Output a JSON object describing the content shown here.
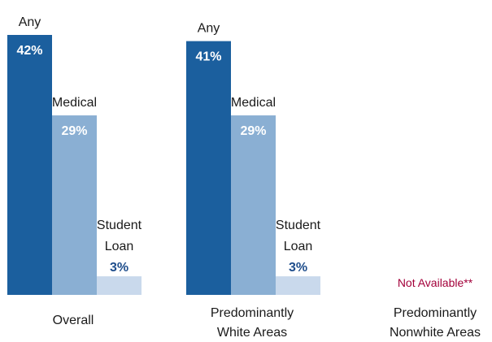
{
  "chart_data": {
    "type": "bar",
    "groups": [
      "Overall",
      "Predominantly White Areas",
      "Predominantly Nonwhite Areas"
    ],
    "group_label_lines": [
      [
        "Overall"
      ],
      [
        "Predominantly",
        "White Areas"
      ],
      [
        "Predominantly",
        "Nonwhite Areas"
      ]
    ],
    "series": [
      {
        "name": "Any",
        "values": [
          42,
          41,
          null
        ],
        "labels": [
          "42%",
          "41%",
          ""
        ],
        "color": "#1b5f9e",
        "label_lines": [
          "Any"
        ],
        "value_inside": true
      },
      {
        "name": "Medical",
        "values": [
          29,
          29,
          null
        ],
        "labels": [
          "29%",
          "29%",
          ""
        ],
        "color": "#8aafd3",
        "label_lines": [
          "Medical"
        ],
        "value_inside": true
      },
      {
        "name": "Student Loan",
        "values": [
          3,
          3,
          null
        ],
        "labels": [
          "3%",
          "3%",
          ""
        ],
        "color": "#c9d9ec",
        "label_lines": [
          "Student",
          "Loan"
        ],
        "value_inside": false
      }
    ],
    "annotations": [
      {
        "group": "Predominantly Nonwhite Areas",
        "text": "Not Available**",
        "color": "#a3003a"
      }
    ],
    "ylim": [
      0,
      42
    ],
    "title": "",
    "xlabel": "",
    "ylabel": ""
  }
}
